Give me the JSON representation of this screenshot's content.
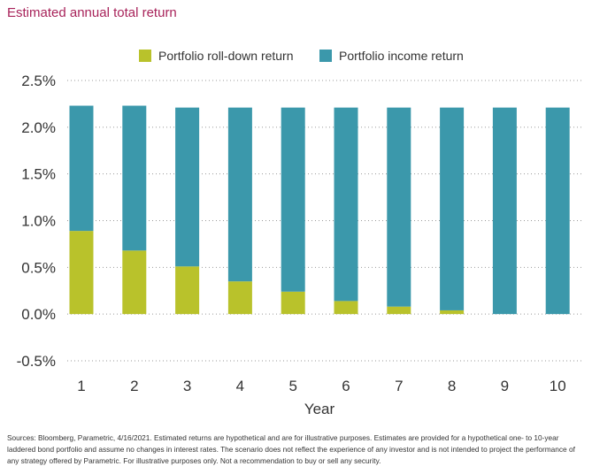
{
  "chart_data": {
    "type": "bar",
    "stacked": true,
    "title": "Estimated annual total return",
    "xlabel": "Year",
    "ylabel": "",
    "categories": [
      "1",
      "2",
      "3",
      "4",
      "5",
      "6",
      "7",
      "8",
      "9",
      "10"
    ],
    "series": [
      {
        "name": "Portfolio roll-down return",
        "color": "#b9c22b",
        "values": [
          0.89,
          0.68,
          0.51,
          0.35,
          0.24,
          0.14,
          0.08,
          0.04,
          0.0,
          0.0
        ]
      },
      {
        "name": "Portfolio income return",
        "color": "#3b98ab",
        "values": [
          1.34,
          1.55,
          1.7,
          1.86,
          1.97,
          2.07,
          2.13,
          2.17,
          2.21,
          2.21
        ]
      }
    ],
    "ylim": [
      -0.5,
      2.5
    ],
    "yticks": [
      "2.5%",
      "2.0%",
      "1.5%",
      "1.0%",
      "0.5%",
      "0.0%",
      "-0.5%"
    ],
    "ytick_values": [
      2.5,
      2.0,
      1.5,
      1.0,
      0.5,
      0.0,
      -0.5
    ],
    "grid": "horizontal-dotted",
    "legend_position": "top"
  },
  "footnote": "Sources: Bloomberg, Parametric, 4/16/2021. Estimated returns are hypothetical and are for illustrative purposes. Estimates are provided for a hypothetical one- to 10-year laddered bond portfolio and assume no changes in interest rates. The scenario does not reflect the experience of any investor and is not intended to project the performance of any strategy offered by Parametric. For illustrative purposes only. Not a recommendation to buy or sell any security."
}
